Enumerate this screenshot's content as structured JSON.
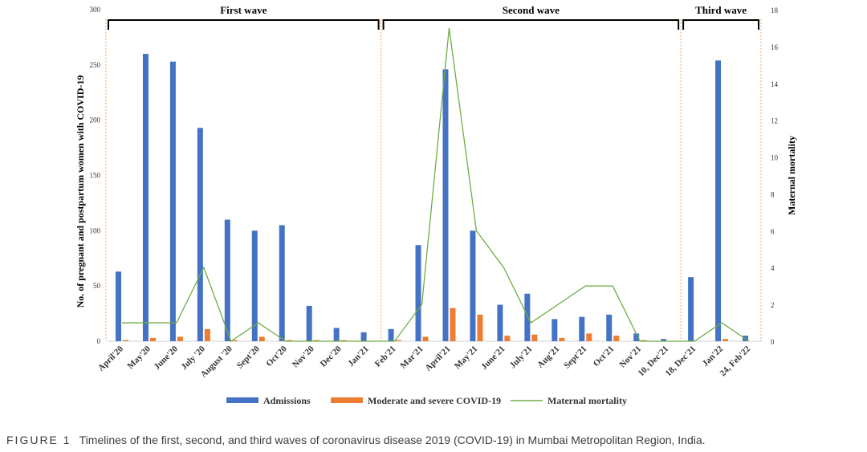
{
  "chart_data": {
    "type": "bar",
    "categories": [
      "April'20",
      "May'20",
      "June'20",
      "July '20",
      "August '20",
      "Sept'20",
      "Oct'20",
      "Nov'20",
      "Dec'20",
      "Jan'21",
      "Feb'21",
      "Mar'21",
      "April'21",
      "May'21",
      "June'21",
      "July'21",
      "Aug'21",
      "Sept'21",
      "Oct'21",
      "Nov'21",
      "10, Dec'21",
      "18, Dec'21",
      "Jan'22",
      "24, Feb'22"
    ],
    "series": [
      {
        "name": "Admissions",
        "type": "bar",
        "axis": "left",
        "color": "#4472C4",
        "values": [
          63,
          260,
          253,
          193,
          110,
          100,
          105,
          32,
          12,
          8,
          11,
          87,
          246,
          100,
          33,
          43,
          20,
          22,
          24,
          7,
          2,
          58,
          254,
          5
        ]
      },
      {
        "name": "Moderate and severe COVID-19",
        "type": "bar",
        "axis": "left",
        "color": "#ED7D31",
        "values": [
          1,
          3,
          4,
          11,
          1,
          4,
          1,
          1,
          1,
          0,
          1,
          4,
          30,
          24,
          5,
          6,
          3,
          7,
          5,
          1,
          0,
          0,
          2,
          0
        ]
      },
      {
        "name": "Maternal mortality",
        "type": "line",
        "axis": "right",
        "color": "#70AD47",
        "values": [
          1,
          1,
          1,
          4,
          0,
          1,
          0,
          0,
          0,
          0,
          0,
          2,
          17,
          6,
          4,
          1,
          2,
          3,
          3,
          0,
          0,
          0,
          1,
          0
        ]
      }
    ],
    "ylabel": "No. of pregnant and postpartum women with COVID-19",
    "y2label": "Maternal mortality",
    "ylim": [
      0,
      300
    ],
    "y2lim": [
      0,
      18
    ],
    "yticks": [
      0,
      50,
      100,
      150,
      200,
      250,
      300
    ],
    "y2ticks": [
      0,
      2,
      4,
      6,
      8,
      10,
      12,
      14,
      16,
      18
    ],
    "waves": [
      {
        "label": "First wave",
        "start": 0,
        "end": 9
      },
      {
        "label": "Second wave",
        "start": 10,
        "end": 20
      },
      {
        "label": "Third wave",
        "start": 21,
        "end": 23
      }
    ],
    "legend_position": "bottom"
  },
  "caption": {
    "figure_label": "FIGURE 1",
    "text": "Timelines of the first, second, and third waves of coronavirus disease 2019 (COVID-19) in Mumbai Metropolitan Region, India."
  }
}
